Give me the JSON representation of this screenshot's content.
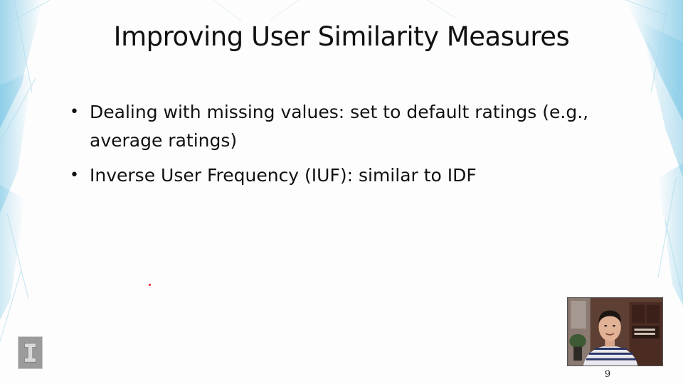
{
  "slide": {
    "title": "Improving User Similarity Measures",
    "bullets": [
      {
        "text": "Dealing with missing values: set to default ratings (e.g., average ratings)"
      },
      {
        "text": "Inverse User Frequency (IUF): similar to IDF"
      }
    ],
    "slide_number": "9"
  },
  "icons": {
    "logo": "university-block-i-logo",
    "webcam": "presenter-webcam-overlay",
    "pointer": "laser-pointer-dot"
  },
  "colors": {
    "background": "#fdfdfd",
    "text": "#111111",
    "decor_accent": "#7fc8e6",
    "pointer": "#e02020"
  }
}
